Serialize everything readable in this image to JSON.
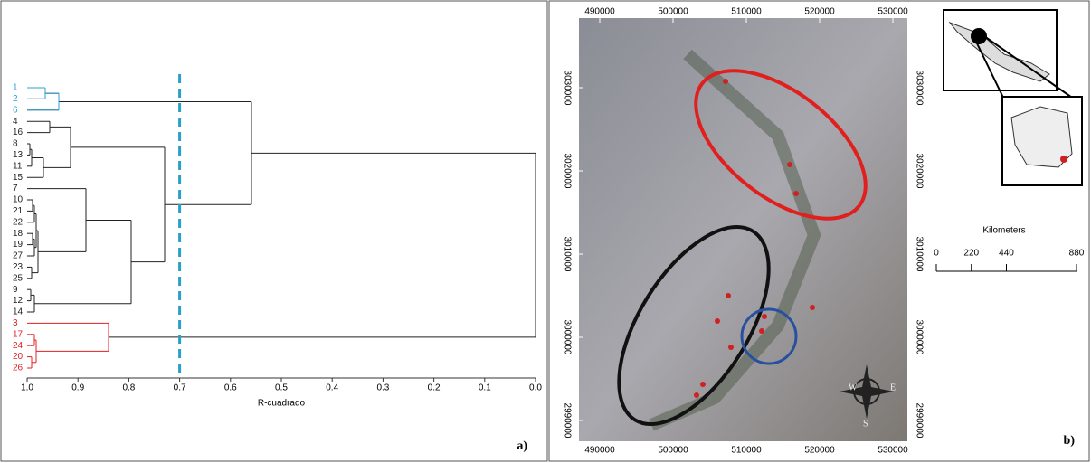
{
  "panel_a": {
    "leaves": [
      "1",
      "2",
      "6",
      "4",
      "16",
      "8",
      "13",
      "11",
      "15",
      "7",
      "10",
      "21",
      "22",
      "18",
      "19",
      "27",
      "23",
      "25",
      "9",
      "12",
      "14",
      "3",
      "17",
      "24",
      "20",
      "26"
    ],
    "x_ticks": [
      {
        "value": 1,
        "label": "1.0"
      },
      0.9,
      0.8,
      0.7,
      0.6,
      0.5,
      0.4,
      0.3,
      0.2,
      0.1,
      {
        "value": 0,
        "label": "0.0"
      }
    ],
    "xlim": [
      1,
      0
    ],
    "axis_label": "R-cuadrado",
    "threshold": 0.7,
    "panel_label": "a)"
  },
  "panel_b": {
    "x_ticks": [
      490000,
      500000,
      510000,
      520000,
      530000
    ],
    "y_ticks": [
      3030000,
      3020000,
      3010000,
      3000000,
      2990000
    ],
    "scale_title": "Kilometers",
    "scale_ticks": [
      0,
      220,
      440,
      880
    ],
    "compass": {
      "west": "W",
      "east": "E",
      "south": "S"
    },
    "panel_label": "b)"
  }
}
